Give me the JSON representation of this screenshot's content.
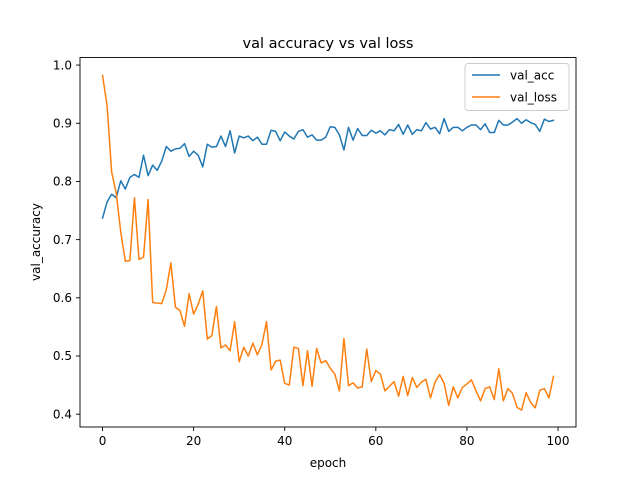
{
  "chart_data": {
    "type": "line",
    "title": "val accuracy vs val loss",
    "xlabel": "epoch",
    "ylabel": "val_accuracy",
    "xlim": [
      -4.95,
      103.95
    ],
    "ylim": [
      0.378,
      1.013
    ],
    "xticks": [
      0,
      20,
      40,
      60,
      80,
      100
    ],
    "yticks": [
      0.4,
      0.5,
      0.6,
      0.7,
      0.8,
      0.9,
      1.0
    ],
    "ytick_labels": [
      "0.4",
      "0.5",
      "0.6",
      "0.7",
      "0.8",
      "0.9",
      "1.0"
    ],
    "grid": false,
    "legend": "top-right",
    "series": [
      {
        "name": "val_acc",
        "color": "#1f77b4",
        "x": [
          0,
          1,
          2,
          3,
          4,
          5,
          6,
          7,
          8,
          9,
          10,
          11,
          12,
          13,
          14,
          15,
          16,
          17,
          18,
          19,
          20,
          21,
          22,
          23,
          24,
          25,
          26,
          27,
          28,
          29,
          30,
          31,
          32,
          33,
          34,
          35,
          36,
          37,
          38,
          39,
          40,
          41,
          42,
          43,
          44,
          45,
          46,
          47,
          48,
          49,
          50,
          51,
          52,
          53,
          54,
          55,
          56,
          57,
          58,
          59,
          60,
          61,
          62,
          63,
          64,
          65,
          66,
          67,
          68,
          69,
          70,
          71,
          72,
          73,
          74,
          75,
          76,
          77,
          78,
          79,
          80,
          81,
          82,
          83,
          84,
          85,
          86,
          87,
          88,
          89,
          90,
          91,
          92,
          93,
          94,
          95,
          96,
          97,
          98,
          99
        ],
        "values": [
          0.737,
          0.765,
          0.778,
          0.772,
          0.801,
          0.787,
          0.807,
          0.812,
          0.807,
          0.845,
          0.81,
          0.828,
          0.819,
          0.835,
          0.86,
          0.852,
          0.856,
          0.857,
          0.865,
          0.843,
          0.852,
          0.845,
          0.825,
          0.864,
          0.859,
          0.86,
          0.878,
          0.86,
          0.887,
          0.849,
          0.878,
          0.875,
          0.878,
          0.87,
          0.876,
          0.864,
          0.864,
          0.888,
          0.886,
          0.87,
          0.885,
          0.878,
          0.873,
          0.886,
          0.889,
          0.876,
          0.88,
          0.871,
          0.871,
          0.876,
          0.894,
          0.893,
          0.88,
          0.854,
          0.893,
          0.871,
          0.891,
          0.879,
          0.879,
          0.888,
          0.883,
          0.887,
          0.88,
          0.889,
          0.887,
          0.898,
          0.881,
          0.897,
          0.881,
          0.889,
          0.887,
          0.901,
          0.89,
          0.893,
          0.882,
          0.908,
          0.886,
          0.893,
          0.893,
          0.887,
          0.893,
          0.897,
          0.897,
          0.889,
          0.899,
          0.884,
          0.884,
          0.905,
          0.897,
          0.897,
          0.902,
          0.908,
          0.9,
          0.906,
          0.901,
          0.898,
          0.886,
          0.907,
          0.903,
          0.905
        ]
      },
      {
        "name": "val_loss",
        "color": "#ff7f0e",
        "x": [
          0,
          1,
          2,
          3,
          4,
          5,
          6,
          7,
          8,
          9,
          10,
          11,
          12,
          13,
          14,
          15,
          16,
          17,
          18,
          19,
          20,
          21,
          22,
          23,
          24,
          25,
          26,
          27,
          28,
          29,
          30,
          31,
          32,
          33,
          34,
          35,
          36,
          37,
          38,
          39,
          40,
          41,
          42,
          43,
          44,
          45,
          46,
          47,
          48,
          49,
          50,
          51,
          52,
          53,
          54,
          55,
          56,
          57,
          58,
          59,
          60,
          61,
          62,
          63,
          64,
          65,
          66,
          67,
          68,
          69,
          70,
          71,
          72,
          73,
          74,
          75,
          76,
          77,
          78,
          79,
          80,
          81,
          82,
          83,
          84,
          85,
          86,
          87,
          88,
          89,
          90,
          91,
          92,
          93,
          94,
          95,
          96,
          97,
          98,
          99
        ],
        "values": [
          0.982,
          0.93,
          0.816,
          0.78,
          0.713,
          0.663,
          0.664,
          0.772,
          0.666,
          0.67,
          0.769,
          0.592,
          0.591,
          0.59,
          0.614,
          0.66,
          0.584,
          0.578,
          0.551,
          0.607,
          0.572,
          0.589,
          0.612,
          0.529,
          0.535,
          0.585,
          0.514,
          0.519,
          0.509,
          0.559,
          0.49,
          0.515,
          0.5,
          0.522,
          0.502,
          0.52,
          0.559,
          0.476,
          0.491,
          0.493,
          0.453,
          0.45,
          0.515,
          0.513,
          0.449,
          0.509,
          0.448,
          0.513,
          0.488,
          0.492,
          0.479,
          0.469,
          0.44,
          0.53,
          0.449,
          0.454,
          0.445,
          0.447,
          0.512,
          0.456,
          0.475,
          0.469,
          0.44,
          0.448,
          0.456,
          0.431,
          0.465,
          0.432,
          0.463,
          0.446,
          0.455,
          0.46,
          0.428,
          0.455,
          0.468,
          0.453,
          0.415,
          0.447,
          0.428,
          0.446,
          0.452,
          0.459,
          0.44,
          0.423,
          0.444,
          0.447,
          0.425,
          0.478,
          0.423,
          0.444,
          0.436,
          0.412,
          0.407,
          0.437,
          0.42,
          0.411,
          0.441,
          0.444,
          0.428,
          0.465
        ]
      }
    ]
  }
}
